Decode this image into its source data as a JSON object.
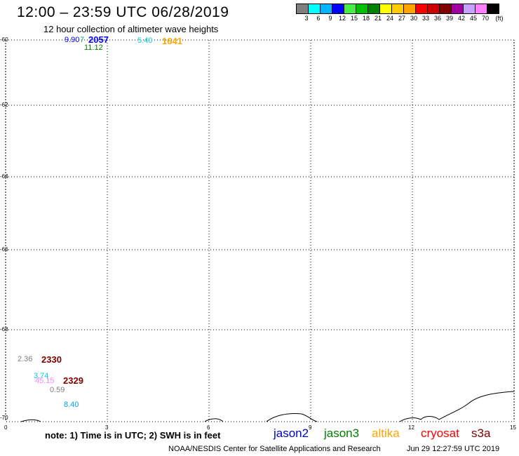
{
  "title": "12:00 – 23:59 UTC 06/28/2019",
  "subtitle": "12 hour collection of altimeter wave heights",
  "scale": {
    "colors": [
      "#7f7f7f",
      "#00ffff",
      "#00b4ff",
      "#0000ff",
      "#44ee44",
      "#00c000",
      "#008000",
      "#ffff00",
      "#ffcc00",
      "#ffa500",
      "#ff0000",
      "#cc0000",
      "#800000",
      "#a000a0",
      "#c8a0ff",
      "#ff80ff",
      "#000000"
    ],
    "labels": [
      "3",
      "6",
      "9",
      "12",
      "15",
      "18",
      "21",
      "24",
      "27",
      "30",
      "33",
      "36",
      "39",
      "42",
      "45",
      "70",
      "(ft)"
    ]
  },
  "y_ticks": [
    "-60",
    "-62",
    "-64",
    "-66",
    "-68",
    "-70"
  ],
  "x_ticks": [
    "0",
    "3",
    "6",
    "9",
    "12",
    "15"
  ],
  "observations": [
    {
      "text": "9.90",
      "color": "#0000ff"
    },
    {
      "text": "7",
      "color": "#00aaaa"
    },
    {
      "text": "2057",
      "color": "#0000ff"
    },
    {
      "text": "11.12",
      "color": "#008000"
    },
    {
      "text": "5.40",
      "color": "#00ccdd"
    },
    {
      "text": "1641",
      "color": "#ffa500"
    },
    {
      "text": "2.36",
      "color": "#7f7f7f"
    },
    {
      "text": "2330",
      "color": "#800000"
    },
    {
      "text": "3.74",
      "color": "#00ccdd"
    },
    {
      "text": "45.15",
      "color": "#ff80ff"
    },
    {
      "text": "2329",
      "color": "#800000"
    },
    {
      "text": "0.59",
      "color": "#7f7f7f"
    },
    {
      "text": "8.40",
      "color": "#00a0e0"
    }
  ],
  "note": "note: 1) Time is in UTC; 2) SWH is in feet",
  "satellites": [
    {
      "name": "jason2",
      "color": "#0000cc"
    },
    {
      "name": "jason3",
      "color": "#008000"
    },
    {
      "name": "altika",
      "color": "#ffa500"
    },
    {
      "name": "cryosat",
      "color": "#ff0000"
    },
    {
      "name": "s3a",
      "color": "#800000"
    }
  ],
  "footer": "NOAA/NESDIS Center for Satellite Applications and Research",
  "footer_date": "Jun 29 12:27:59 UTC 2019"
}
